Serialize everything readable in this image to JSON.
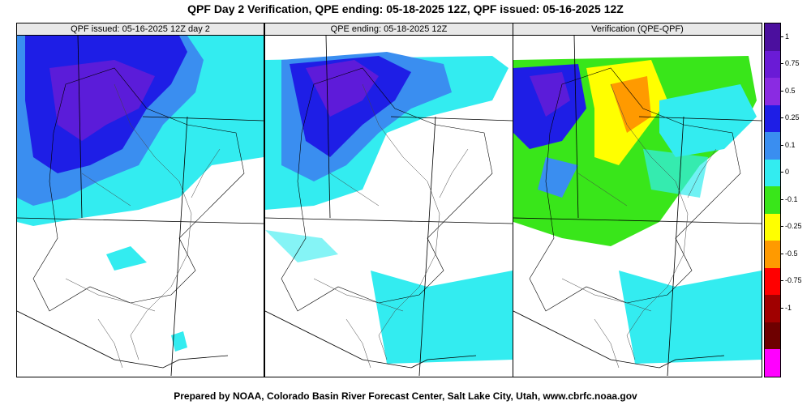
{
  "title": "QPF Day 2 Verification, QPE ending: 05-18-2025 12Z, QPF issued: 05-16-2025 12Z",
  "footer": "Prepared by NOAA, Colorado Basin River Forecast Center, Salt Lake City, Utah, www.cbrfc.noaa.gov",
  "panels": [
    {
      "title": "QPF issued: 05-16-2025 12Z day 2"
    },
    {
      "title": "QPE ending: 05-18-2025 12Z"
    },
    {
      "title": "Verification (QPE-QPF)"
    }
  ],
  "colorbar": {
    "labels": [
      "1",
      "0.75",
      "0.5",
      "0.25",
      "0.1",
      "0",
      "-0.1",
      "-0.25",
      "-0.5",
      "-0.75",
      "-1"
    ],
    "colors": [
      "#4b0f9e",
      "#6a1bd6",
      "#8a2be2",
      "#1e1ee6",
      "#3a8ef0",
      "#33ecf0",
      "#39e61a",
      "#ffff00",
      "#ff9a00",
      "#ff0000",
      "#a00000",
      "#6e0000",
      "#ff00ff"
    ]
  }
}
